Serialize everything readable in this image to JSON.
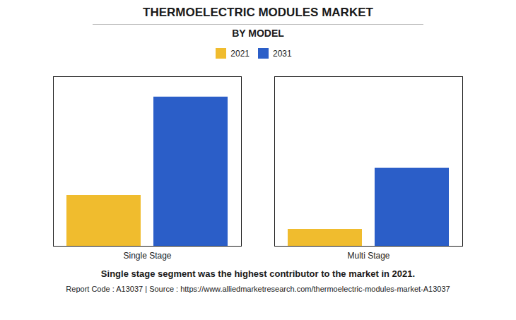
{
  "chart_data": {
    "type": "bar",
    "title": "THERMOELECTRIC MODULES MARKET",
    "subtitle": "BY MODEL",
    "categories": [
      "Single Stage",
      "Multi Stage"
    ],
    "series": [
      {
        "name": "2021",
        "color": "#F0BC2E",
        "values": [
          0.3,
          0.1
        ]
      },
      {
        "name": "2031",
        "color": "#2B5EC8",
        "values": [
          0.88,
          0.46
        ]
      }
    ],
    "ylim": [
      0,
      1.0
    ],
    "grid": false,
    "legend": "top",
    "tick_labels": "x",
    "annotations": [
      "Single stage segment was the highest contributor to the market in 2021.",
      "Report Code : A13037  |  Source : https://www.alliedmarketresearch.com/thermoelectric-modules-market-A13037"
    ]
  }
}
